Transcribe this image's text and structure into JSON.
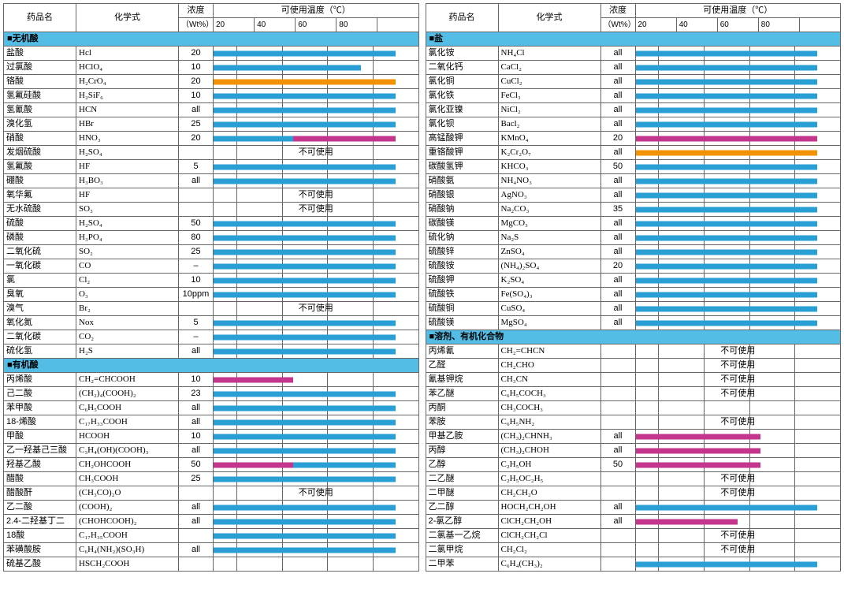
{
  "colors": {
    "section_bg": "#53bde5",
    "bar_blue": "#2a9fd6",
    "bar_orange": "#f39200",
    "bar_magenta": "#c4368c",
    "border": "#666666"
  },
  "headers": {
    "name": "药品名",
    "formula": "化学式",
    "conc": "浓度",
    "conc_sub": "（Wt%）",
    "temp": "可使用温度（℃）",
    "temp_ticks": [
      "20",
      "40",
      "60",
      "80"
    ]
  },
  "no_use_label": "不可使用",
  "temp_axis": {
    "min": 10,
    "max": 100
  },
  "left": [
    {
      "section": "■无机酸"
    },
    {
      "n": "盐酸",
      "f": "Hcl",
      "c": "20",
      "bars": [
        {
          "from": 10,
          "to": 90,
          "color": "blue"
        }
      ]
    },
    {
      "n": "过氯酸",
      "f": "HClO4",
      "c": "10",
      "bars": [
        {
          "from": 10,
          "to": 75,
          "color": "blue"
        }
      ]
    },
    {
      "n": "铬酸",
      "f": "H2CrO4",
      "c": "20",
      "bars": [
        {
          "from": 10,
          "to": 90,
          "color": "orange"
        }
      ]
    },
    {
      "n": "氢氟硅酸",
      "f": "H2SiF6",
      "c": "10",
      "bars": [
        {
          "from": 10,
          "to": 90,
          "color": "blue"
        }
      ]
    },
    {
      "n": "氢氰酸",
      "f": "HCN",
      "c": "all",
      "bars": [
        {
          "from": 10,
          "to": 90,
          "color": "blue"
        }
      ]
    },
    {
      "n": "溴化氢",
      "f": "HBr",
      "c": "25",
      "bars": [
        {
          "from": 10,
          "to": 90,
          "color": "blue"
        }
      ]
    },
    {
      "n": "硝酸",
      "f": "HNO3",
      "c": "20",
      "bars": [
        {
          "from": 10,
          "to": 45,
          "color": "blue"
        },
        {
          "from": 45,
          "to": 90,
          "color": "magenta"
        }
      ]
    },
    {
      "n": "发烟硫酸",
      "f": "H2SO4",
      "c": "",
      "no_use": true
    },
    {
      "n": "氢氟酸",
      "f": "HF",
      "c": "5",
      "bars": [
        {
          "from": 10,
          "to": 90,
          "color": "blue"
        }
      ]
    },
    {
      "n": "硼酸",
      "f": "H3BO3",
      "c": "all",
      "bars": [
        {
          "from": 10,
          "to": 90,
          "color": "blue"
        }
      ]
    },
    {
      "n": "氧华氟",
      "f": "HF",
      "c": "",
      "no_use": true
    },
    {
      "n": "无水硫酸",
      "f": "SO3",
      "c": "",
      "no_use": true
    },
    {
      "n": "硫酸",
      "f": "H2SO4",
      "c": "50",
      "bars": [
        {
          "from": 10,
          "to": 90,
          "color": "blue"
        }
      ]
    },
    {
      "n": "磷酸",
      "f": "H3PO4",
      "c": "80",
      "bars": [
        {
          "from": 10,
          "to": 90,
          "color": "blue"
        }
      ]
    },
    {
      "n": "二氧化硫",
      "f": "SO2",
      "c": "25",
      "bars": [
        {
          "from": 10,
          "to": 90,
          "color": "blue"
        }
      ]
    },
    {
      "n": "一氧化碳",
      "f": "CO",
      "c": "–",
      "bars": [
        {
          "from": 10,
          "to": 90,
          "color": "blue"
        }
      ]
    },
    {
      "n": "氯",
      "f": "Cl2",
      "c": "10",
      "bars": [
        {
          "from": 10,
          "to": 90,
          "color": "blue"
        }
      ]
    },
    {
      "n": "臭氧",
      "f": "O3",
      "c": "10ppm",
      "bars": [
        {
          "from": 10,
          "to": 90,
          "color": "blue"
        }
      ]
    },
    {
      "n": "溴气",
      "f": "Br2",
      "c": "",
      "no_use": true
    },
    {
      "n": "氧化氮",
      "f": "Nox",
      "c": "5",
      "bars": [
        {
          "from": 10,
          "to": 90,
          "color": "blue"
        }
      ]
    },
    {
      "n": "二氧化碳",
      "f": "CO2",
      "c": "–",
      "bars": [
        {
          "from": 10,
          "to": 90,
          "color": "blue"
        }
      ]
    },
    {
      "n": "硫化氢",
      "f": "H2S",
      "c": "all",
      "bars": [
        {
          "from": 10,
          "to": 90,
          "color": "blue"
        }
      ]
    },
    {
      "section": "■有机酸"
    },
    {
      "n": "丙烯酸",
      "f": "CH2=CHCOOH",
      "c": "10",
      "bars": [
        {
          "from": 10,
          "to": 45,
          "color": "magenta"
        }
      ]
    },
    {
      "n": "己二酸",
      "f": "(CH2)4(COOH)2",
      "c": "23",
      "bars": [
        {
          "from": 10,
          "to": 90,
          "color": "blue"
        }
      ]
    },
    {
      "n": "苯甲酸",
      "f": "C6H5COOH",
      "c": "all",
      "bars": [
        {
          "from": 10,
          "to": 90,
          "color": "blue"
        }
      ]
    },
    {
      "n": "18-烯酸",
      "f": "C17H33COOH",
      "c": "all",
      "bars": [
        {
          "from": 10,
          "to": 90,
          "color": "blue"
        }
      ]
    },
    {
      "n": "甲酸",
      "f": "HCOOH",
      "c": "10",
      "bars": [
        {
          "from": 10,
          "to": 90,
          "color": "blue"
        }
      ]
    },
    {
      "n": "乙一羟基己三酸",
      "f": "C3H4(OH)(COOH)3",
      "c": "all",
      "bars": [
        {
          "from": 10,
          "to": 90,
          "color": "blue"
        }
      ]
    },
    {
      "n": "羟基乙酸",
      "f": "CH2OHCOOH",
      "c": "50",
      "bars": [
        {
          "from": 10,
          "to": 45,
          "color": "magenta"
        },
        {
          "from": 45,
          "to": 90,
          "color": "blue"
        }
      ]
    },
    {
      "n": "醋酸",
      "f": "CH3COOH",
      "c": "25",
      "bars": [
        {
          "from": 10,
          "to": 90,
          "color": "blue"
        }
      ]
    },
    {
      "n": "醋酸酐",
      "f": "(CH3CO)2O",
      "c": "",
      "no_use": true
    },
    {
      "n": "乙二酸",
      "f": "(COOH)2",
      "c": "all",
      "bars": [
        {
          "from": 10,
          "to": 90,
          "color": "blue"
        }
      ]
    },
    {
      "n": "2.4-二羟基丁二",
      "f": "(CHOHCOOH)2",
      "c": "all",
      "bars": [
        {
          "from": 10,
          "to": 90,
          "color": "blue"
        }
      ]
    },
    {
      "n": "18酸",
      "f": "C17H35COOH",
      "c": "",
      "bars": [
        {
          "from": 10,
          "to": 90,
          "color": "blue"
        }
      ]
    },
    {
      "n": "苯磺酸胺",
      "f": "C6H4(NH2)(SO3H)",
      "c": "all",
      "bars": [
        {
          "from": 10,
          "to": 90,
          "color": "blue"
        }
      ]
    },
    {
      "n": "硫基乙酸",
      "f": "HSCH2COOH",
      "c": "",
      "bars": []
    }
  ],
  "right": [
    {
      "section": "■盐"
    },
    {
      "n": "氯化铵",
      "f": "NH4Cl",
      "c": "all",
      "bars": [
        {
          "from": 10,
          "to": 90,
          "color": "blue"
        }
      ]
    },
    {
      "n": "二氧化钙",
      "f": "CaCl2",
      "c": "all",
      "bars": [
        {
          "from": 10,
          "to": 90,
          "color": "blue"
        }
      ]
    },
    {
      "n": "氯化铜",
      "f": "CuCl2",
      "c": "all",
      "bars": [
        {
          "from": 10,
          "to": 90,
          "color": "blue"
        }
      ]
    },
    {
      "n": "氯化铁",
      "f": "FeCl3",
      "c": "all",
      "bars": [
        {
          "from": 10,
          "to": 90,
          "color": "blue"
        }
      ]
    },
    {
      "n": "氯化亚镍",
      "f": "NiCl2",
      "c": "all",
      "bars": [
        {
          "from": 10,
          "to": 90,
          "color": "blue"
        }
      ]
    },
    {
      "n": "氯化钡",
      "f": "Bacl2",
      "c": "all",
      "bars": [
        {
          "from": 10,
          "to": 90,
          "color": "blue"
        }
      ]
    },
    {
      "n": "高锰酸钾",
      "f": "KMnO4",
      "c": "20",
      "bars": [
        {
          "from": 10,
          "to": 90,
          "color": "magenta"
        }
      ]
    },
    {
      "n": "重铬酸钾",
      "f": "K2Cr2O7",
      "c": "all",
      "bars": [
        {
          "from": 10,
          "to": 90,
          "color": "orange"
        }
      ]
    },
    {
      "n": "碳酸氢钾",
      "f": "KHCO3",
      "c": "50",
      "bars": [
        {
          "from": 10,
          "to": 90,
          "color": "blue"
        }
      ]
    },
    {
      "n": "硝酸氨",
      "f": "NH4NO3",
      "c": "all",
      "bars": [
        {
          "from": 10,
          "to": 90,
          "color": "blue"
        }
      ]
    },
    {
      "n": "硝酸银",
      "f": "AgNO3",
      "c": "all",
      "bars": [
        {
          "from": 10,
          "to": 90,
          "color": "blue"
        }
      ]
    },
    {
      "n": "硝酸钠",
      "f": "Na2CO3",
      "c": "35",
      "bars": [
        {
          "from": 10,
          "to": 90,
          "color": "blue"
        }
      ]
    },
    {
      "n": "碳酸镁",
      "f": "MgCO3",
      "c": "all",
      "bars": [
        {
          "from": 10,
          "to": 90,
          "color": "blue"
        }
      ]
    },
    {
      "n": "硫化钠",
      "f": "Na2S",
      "c": "all",
      "bars": [
        {
          "from": 10,
          "to": 90,
          "color": "blue"
        }
      ]
    },
    {
      "n": "硫酸锌",
      "f": "ZnSO4",
      "c": "all",
      "bars": [
        {
          "from": 10,
          "to": 90,
          "color": "blue"
        }
      ]
    },
    {
      "n": "硫酸铵",
      "f": "(NH4)2SO4",
      "c": "20",
      "bars": [
        {
          "from": 10,
          "to": 90,
          "color": "blue"
        }
      ]
    },
    {
      "n": "硫酸钾",
      "f": "K2SO4",
      "c": "all",
      "bars": [
        {
          "from": 10,
          "to": 90,
          "color": "blue"
        }
      ]
    },
    {
      "n": "硫酸铁",
      "f": "Fe(SO4)3",
      "c": "all",
      "bars": [
        {
          "from": 10,
          "to": 90,
          "color": "blue"
        }
      ]
    },
    {
      "n": "硫酸铜",
      "f": "CuSO4",
      "c": "all",
      "bars": [
        {
          "from": 10,
          "to": 90,
          "color": "blue"
        }
      ]
    },
    {
      "n": "硫酸镁",
      "f": "MgSO4",
      "c": "all",
      "bars": [
        {
          "from": 10,
          "to": 90,
          "color": "blue"
        }
      ]
    },
    {
      "section": "■溶剂、有机化合物"
    },
    {
      "n": "丙烯氰",
      "f": "CH2=CHCN",
      "c": "",
      "no_use": true
    },
    {
      "n": "乙醛",
      "f": "CH2CHO",
      "c": "",
      "no_use": true
    },
    {
      "n": "氰基钾烷",
      "f": "CH3CN",
      "c": "",
      "no_use": true
    },
    {
      "n": "苯乙醚",
      "f": "C6H5COCH3",
      "c": "",
      "no_use": true
    },
    {
      "n": "丙酮",
      "f": "CH3COCH3",
      "c": "",
      "bars": []
    },
    {
      "n": "苯胺",
      "f": "C6H5NH2",
      "c": "",
      "no_use": true
    },
    {
      "n": "甲基乙胺",
      "f": "(CH3)2CHNH3",
      "c": "all",
      "bars": [
        {
          "from": 10,
          "to": 65,
          "color": "magenta"
        }
      ]
    },
    {
      "n": "丙醇",
      "f": "(CH3)2CHOH",
      "c": "all",
      "bars": [
        {
          "from": 10,
          "to": 65,
          "color": "magenta"
        }
      ]
    },
    {
      "n": "乙醇",
      "f": "C2H5OH",
      "c": "50",
      "bars": [
        {
          "from": 10,
          "to": 65,
          "color": "magenta"
        }
      ]
    },
    {
      "n": "二乙醚",
      "f": "C2H5OC2H5",
      "c": "",
      "no_use": true
    },
    {
      "n": "二甲醚",
      "f": "CH2CH2O",
      "c": "",
      "no_use": true
    },
    {
      "n": "乙二醇",
      "f": "HOCH2CH2OH",
      "c": "all",
      "bars": [
        {
          "from": 10,
          "to": 90,
          "color": "blue"
        }
      ]
    },
    {
      "n": "2-氯乙醇",
      "f": "ClCH2CH2OH",
      "c": "all",
      "bars": [
        {
          "from": 10,
          "to": 55,
          "color": "magenta"
        }
      ]
    },
    {
      "n": "二氯基一乙烷",
      "f": "ClCH2CH2Cl",
      "c": "",
      "no_use": true
    },
    {
      "n": "二氯甲烷",
      "f": "CH2Cl2",
      "c": "",
      "no_use": true
    },
    {
      "n": "二甲苯",
      "f": "C6H4(CH3)2",
      "c": "",
      "bars": [
        {
          "from": 10,
          "to": 90,
          "color": "blue"
        }
      ]
    }
  ]
}
